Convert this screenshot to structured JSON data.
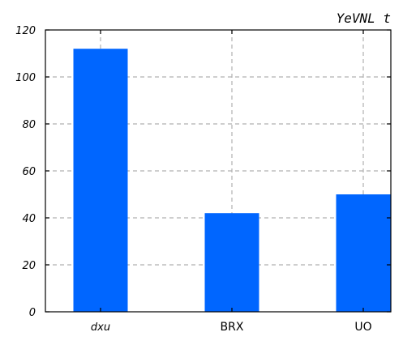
{
  "chart_data": {
    "type": "bar",
    "title": "YeVNL t",
    "xlabel": "",
    "ylabel": "",
    "categories": [
      "dxu",
      "BRX",
      "UO"
    ],
    "values": [
      112,
      42,
      50
    ],
    "ylim": [
      0,
      120
    ],
    "yticks": [
      0,
      20,
      40,
      60,
      80,
      100,
      120
    ],
    "bar_color": "#0066ff",
    "grid": true,
    "grid_color": "#b0b0b0"
  }
}
